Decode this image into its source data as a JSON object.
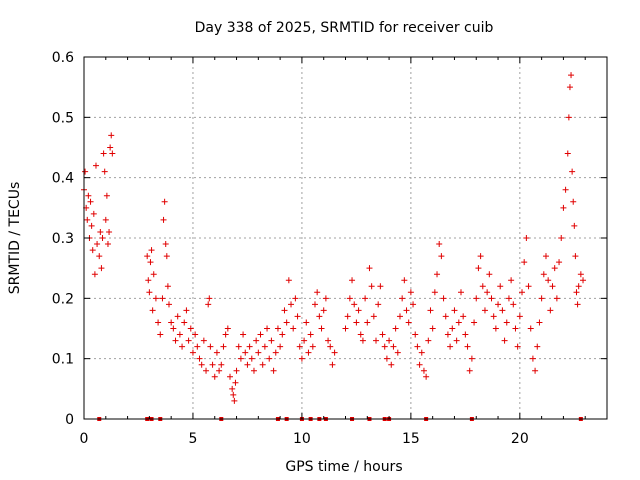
{
  "chart_data": {
    "type": "scatter",
    "title": "Day 338 of 2025, SRMTID for receiver cuib",
    "xlabel": "GPS time / hours",
    "ylabel": "SRMTID / TECUs",
    "xlim": [
      0,
      24
    ],
    "ylim": [
      0,
      0.6
    ],
    "xticks": [
      0,
      5,
      10,
      15,
      20
    ],
    "yticks": [
      0,
      0.1,
      0.2,
      0.3,
      0.4,
      0.5,
      0.6
    ],
    "xtick_labels": [
      "0",
      "5",
      "10",
      "15",
      "20"
    ],
    "ytick_labels": [
      "0",
      "0.1",
      "0.2",
      "0.3",
      "0.4",
      "0.5",
      "0.6"
    ],
    "grid": true,
    "legend": "none",
    "marker": "+",
    "color": "#e00000",
    "series": [
      {
        "name": "SRMTID",
        "points": [
          [
            0.0,
            0.38
          ],
          [
            0.05,
            0.41
          ],
          [
            0.1,
            0.35
          ],
          [
            0.15,
            0.33
          ],
          [
            0.2,
            0.37
          ],
          [
            0.25,
            0.3
          ],
          [
            0.3,
            0.36
          ],
          [
            0.35,
            0.32
          ],
          [
            0.4,
            0.28
          ],
          [
            0.45,
            0.34
          ],
          [
            0.5,
            0.24
          ],
          [
            0.55,
            0.42
          ],
          [
            0.6,
            0.29
          ],
          [
            0.7,
            0.27
          ],
          [
            0.75,
            0.31
          ],
          [
            0.8,
            0.25
          ],
          [
            0.85,
            0.3
          ],
          [
            0.9,
            0.44
          ],
          [
            0.95,
            0.41
          ],
          [
            1.0,
            0.33
          ],
          [
            1.05,
            0.37
          ],
          [
            1.1,
            0.29
          ],
          [
            1.15,
            0.31
          ],
          [
            1.2,
            0.45
          ],
          [
            1.25,
            0.47
          ],
          [
            1.3,
            0.44
          ],
          [
            2.9,
            0.27
          ],
          [
            2.95,
            0.23
          ],
          [
            3.0,
            0.21
          ],
          [
            3.05,
            0.26
          ],
          [
            3.1,
            0.28
          ],
          [
            3.15,
            0.18
          ],
          [
            3.2,
            0.24
          ],
          [
            3.3,
            0.2
          ],
          [
            3.4,
            0.16
          ],
          [
            3.5,
            0.14
          ],
          [
            3.6,
            0.2
          ],
          [
            3.65,
            0.33
          ],
          [
            3.7,
            0.36
          ],
          [
            3.75,
            0.29
          ],
          [
            3.8,
            0.27
          ],
          [
            3.85,
            0.22
          ],
          [
            3.9,
            0.19
          ],
          [
            4.0,
            0.16
          ],
          [
            4.1,
            0.15
          ],
          [
            4.2,
            0.13
          ],
          [
            4.3,
            0.17
          ],
          [
            4.4,
            0.14
          ],
          [
            4.5,
            0.12
          ],
          [
            4.6,
            0.16
          ],
          [
            4.7,
            0.18
          ],
          [
            4.8,
            0.13
          ],
          [
            4.9,
            0.15
          ],
          [
            5.0,
            0.11
          ],
          [
            5.1,
            0.14
          ],
          [
            5.2,
            0.12
          ],
          [
            5.3,
            0.1
          ],
          [
            5.4,
            0.09
          ],
          [
            5.5,
            0.13
          ],
          [
            5.6,
            0.08
          ],
          [
            5.7,
            0.19
          ],
          [
            5.75,
            0.2
          ],
          [
            5.8,
            0.12
          ],
          [
            5.9,
            0.09
          ],
          [
            6.0,
            0.07
          ],
          [
            6.1,
            0.11
          ],
          [
            6.2,
            0.08
          ],
          [
            6.3,
            0.09
          ],
          [
            6.4,
            0.12
          ],
          [
            6.5,
            0.14
          ],
          [
            6.6,
            0.15
          ],
          [
            6.7,
            0.07
          ],
          [
            6.8,
            0.05
          ],
          [
            6.85,
            0.04
          ],
          [
            6.9,
            0.03
          ],
          [
            6.95,
            0.06
          ],
          [
            7.0,
            0.08
          ],
          [
            7.1,
            0.12
          ],
          [
            7.2,
            0.1
          ],
          [
            7.3,
            0.14
          ],
          [
            7.4,
            0.11
          ],
          [
            7.5,
            0.09
          ],
          [
            7.6,
            0.12
          ],
          [
            7.7,
            0.1
          ],
          [
            7.8,
            0.08
          ],
          [
            7.9,
            0.13
          ],
          [
            8.0,
            0.11
          ],
          [
            8.1,
            0.14
          ],
          [
            8.2,
            0.09
          ],
          [
            8.3,
            0.12
          ],
          [
            8.4,
            0.15
          ],
          [
            8.5,
            0.1
          ],
          [
            8.6,
            0.13
          ],
          [
            8.7,
            0.08
          ],
          [
            8.8,
            0.11
          ],
          [
            8.9,
            0.15
          ],
          [
            9.0,
            0.12
          ],
          [
            9.1,
            0.14
          ],
          [
            9.2,
            0.18
          ],
          [
            9.3,
            0.16
          ],
          [
            9.4,
            0.23
          ],
          [
            9.5,
            0.19
          ],
          [
            9.6,
            0.15
          ],
          [
            9.7,
            0.2
          ],
          [
            9.8,
            0.17
          ],
          [
            9.9,
            0.12
          ],
          [
            10.0,
            0.1
          ],
          [
            10.1,
            0.13
          ],
          [
            10.2,
            0.16
          ],
          [
            10.3,
            0.11
          ],
          [
            10.4,
            0.14
          ],
          [
            10.5,
            0.12
          ],
          [
            10.6,
            0.19
          ],
          [
            10.7,
            0.21
          ],
          [
            10.8,
            0.17
          ],
          [
            10.9,
            0.15
          ],
          [
            11.0,
            0.18
          ],
          [
            11.1,
            0.2
          ],
          [
            11.2,
            0.13
          ],
          [
            11.3,
            0.12
          ],
          [
            11.4,
            0.09
          ],
          [
            11.5,
            0.11
          ],
          [
            12.0,
            0.15
          ],
          [
            12.1,
            0.17
          ],
          [
            12.2,
            0.2
          ],
          [
            12.3,
            0.23
          ],
          [
            12.4,
            0.19
          ],
          [
            12.5,
            0.16
          ],
          [
            12.6,
            0.18
          ],
          [
            12.7,
            0.14
          ],
          [
            12.8,
            0.13
          ],
          [
            12.9,
            0.2
          ],
          [
            13.0,
            0.16
          ],
          [
            13.1,
            0.25
          ],
          [
            13.2,
            0.22
          ],
          [
            13.3,
            0.17
          ],
          [
            13.4,
            0.13
          ],
          [
            13.5,
            0.19
          ],
          [
            13.6,
            0.22
          ],
          [
            13.7,
            0.14
          ],
          [
            13.8,
            0.12
          ],
          [
            13.9,
            0.1
          ],
          [
            14.0,
            0.13
          ],
          [
            14.1,
            0.09
          ],
          [
            14.2,
            0.12
          ],
          [
            14.3,
            0.15
          ],
          [
            14.4,
            0.11
          ],
          [
            14.5,
            0.17
          ],
          [
            14.6,
            0.2
          ],
          [
            14.7,
            0.23
          ],
          [
            14.8,
            0.18
          ],
          [
            14.9,
            0.16
          ],
          [
            15.0,
            0.21
          ],
          [
            15.1,
            0.19
          ],
          [
            15.2,
            0.14
          ],
          [
            15.3,
            0.12
          ],
          [
            15.4,
            0.09
          ],
          [
            15.5,
            0.11
          ],
          [
            15.6,
            0.08
          ],
          [
            15.7,
            0.07
          ],
          [
            15.8,
            0.13
          ],
          [
            15.9,
            0.18
          ],
          [
            16.0,
            0.15
          ],
          [
            16.1,
            0.21
          ],
          [
            16.2,
            0.24
          ],
          [
            16.3,
            0.29
          ],
          [
            16.4,
            0.27
          ],
          [
            16.5,
            0.2
          ],
          [
            16.6,
            0.17
          ],
          [
            16.7,
            0.14
          ],
          [
            16.8,
            0.12
          ],
          [
            16.9,
            0.15
          ],
          [
            17.0,
            0.18
          ],
          [
            17.1,
            0.13
          ],
          [
            17.2,
            0.16
          ],
          [
            17.3,
            0.21
          ],
          [
            17.4,
            0.17
          ],
          [
            17.5,
            0.14
          ],
          [
            17.6,
            0.12
          ],
          [
            17.7,
            0.08
          ],
          [
            17.8,
            0.1
          ],
          [
            17.9,
            0.16
          ],
          [
            18.0,
            0.2
          ],
          [
            18.1,
            0.25
          ],
          [
            18.2,
            0.27
          ],
          [
            18.3,
            0.22
          ],
          [
            18.4,
            0.18
          ],
          [
            18.5,
            0.21
          ],
          [
            18.6,
            0.24
          ],
          [
            18.7,
            0.2
          ],
          [
            18.8,
            0.17
          ],
          [
            18.9,
            0.15
          ],
          [
            19.0,
            0.19
          ],
          [
            19.1,
            0.22
          ],
          [
            19.2,
            0.18
          ],
          [
            19.3,
            0.13
          ],
          [
            19.4,
            0.16
          ],
          [
            19.5,
            0.2
          ],
          [
            19.6,
            0.23
          ],
          [
            19.7,
            0.19
          ],
          [
            19.8,
            0.15
          ],
          [
            19.9,
            0.12
          ],
          [
            20.0,
            0.17
          ],
          [
            20.1,
            0.21
          ],
          [
            20.2,
            0.26
          ],
          [
            20.3,
            0.3
          ],
          [
            20.4,
            0.22
          ],
          [
            20.5,
            0.15
          ],
          [
            20.6,
            0.1
          ],
          [
            20.7,
            0.08
          ],
          [
            20.8,
            0.12
          ],
          [
            20.9,
            0.16
          ],
          [
            21.0,
            0.2
          ],
          [
            21.1,
            0.24
          ],
          [
            21.2,
            0.27
          ],
          [
            21.3,
            0.23
          ],
          [
            21.4,
            0.18
          ],
          [
            21.5,
            0.22
          ],
          [
            21.6,
            0.25
          ],
          [
            21.7,
            0.2
          ],
          [
            21.8,
            0.26
          ],
          [
            21.9,
            0.3
          ],
          [
            22.0,
            0.35
          ],
          [
            22.1,
            0.38
          ],
          [
            22.2,
            0.44
          ],
          [
            22.25,
            0.5
          ],
          [
            22.3,
            0.55
          ],
          [
            22.35,
            0.57
          ],
          [
            22.4,
            0.41
          ],
          [
            22.45,
            0.36
          ],
          [
            22.5,
            0.32
          ],
          [
            22.55,
            0.27
          ],
          [
            22.6,
            0.21
          ],
          [
            22.65,
            0.19
          ],
          [
            22.7,
            0.22
          ],
          [
            22.8,
            0.24
          ],
          [
            22.9,
            0.23
          ]
        ],
        "gap_markers_x": [
          0.7,
          2.9,
          3.1,
          3.5,
          6.3,
          8.9,
          9.3,
          10.0,
          10.4,
          10.8,
          11.1,
          12.3,
          13.1,
          13.8,
          14.0,
          15.7,
          17.8,
          22.8
        ]
      }
    ]
  }
}
